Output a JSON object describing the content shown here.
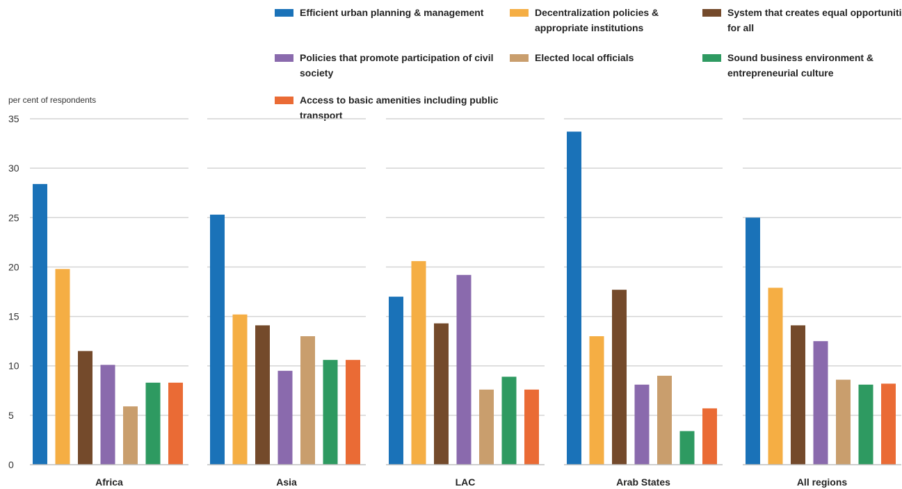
{
  "chart_data": {
    "type": "bar",
    "title": "",
    "ylabel": "per cent of respondents",
    "ylim": [
      0,
      35
    ],
    "yticks": [
      0,
      5,
      10,
      15,
      20,
      25,
      30,
      35
    ],
    "grid": true,
    "legend_position": "top",
    "categories": [
      "Africa",
      "Asia",
      "LAC",
      "Arab States",
      "All regions"
    ],
    "series": [
      {
        "name": "Efficient urban planning & management",
        "color": "#1a72b8",
        "values": [
          28.4,
          25.3,
          17.0,
          33.7,
          25.0
        ]
      },
      {
        "name": "Decentralization policies & appropriate institutions",
        "color": "#f5ae44",
        "values": [
          19.8,
          15.2,
          20.6,
          13.0,
          17.9
        ]
      },
      {
        "name": "System that creates equal opportunities for all",
        "color": "#744a2b",
        "values": [
          11.5,
          14.1,
          14.3,
          17.7,
          14.1
        ]
      },
      {
        "name": "Policies that promote participation of civil society",
        "color": "#8a6aad",
        "values": [
          10.1,
          9.5,
          19.2,
          8.1,
          12.5
        ]
      },
      {
        "name": "Elected local officials",
        "color": "#c99e6d",
        "values": [
          5.9,
          13.0,
          7.6,
          9.0,
          8.6
        ]
      },
      {
        "name": "Sound business environment & entrepreneurial culture",
        "color": "#2e9a61",
        "values": [
          8.3,
          10.6,
          8.9,
          3.4,
          8.1
        ]
      },
      {
        "name": "Access to basic amenities including public transport",
        "color": "#ea6b35",
        "values": [
          8.3,
          10.6,
          7.6,
          5.7,
          8.2
        ]
      }
    ]
  }
}
